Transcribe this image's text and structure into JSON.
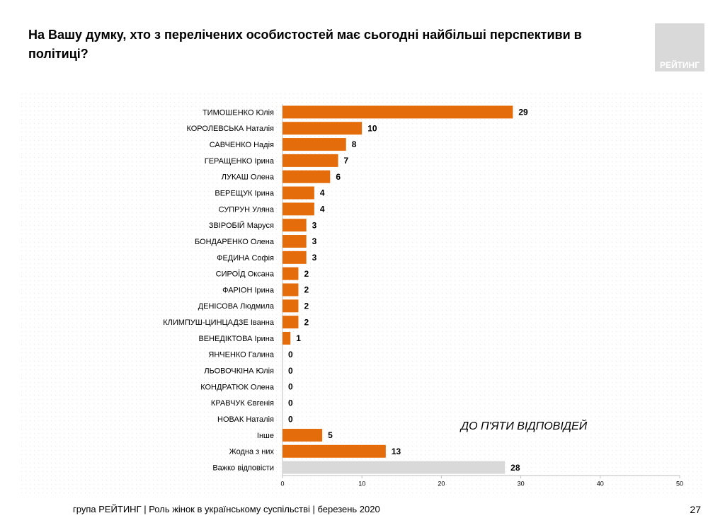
{
  "chart_data": {
    "type": "bar",
    "title": "На Вашу думку, хто з перелічених особистостей має сьогодні найбільші перспективи в політиці?",
    "categories": [
      "ТИМОШЕНКО Юлія",
      "КОРОЛЕВСЬКА Наталія",
      "САВЧЕНКО Надія",
      "ГЕРАЩЕНКО Ірина",
      "ЛУКАШ Олена",
      "ВЕРЕЩУК Ірина",
      "СУПРУН Уляна",
      "ЗВІРОБІЙ Маруся",
      "БОНДАРЕНКО Олена",
      "ФЕДИНА Софія",
      "СИРОЇД Оксана",
      "ФАРІОН Ірина",
      "ДЕНІСОВА Людмила",
      "КЛИМПУШ-ЦИНЦАДЗЕ Іванна",
      "ВЕНЕДІКТОВА Ірина",
      "ЯНЧЕНКО Галина",
      "ЛЬОВОЧКІНА Юлія",
      "КОНДРАТЮК Олена",
      "КРАВЧУК Євгенія",
      "НОВАК Наталія",
      "Інше",
      "Жодна з них",
      "Важко відповісти"
    ],
    "values": [
      29,
      10,
      8,
      7,
      6,
      4,
      4,
      3,
      3,
      3,
      2,
      2,
      2,
      2,
      1,
      0,
      0,
      0,
      0,
      0,
      5,
      13,
      28
    ],
    "colors": [
      "#e46c0a",
      "#e46c0a",
      "#e46c0a",
      "#e46c0a",
      "#e46c0a",
      "#e46c0a",
      "#e46c0a",
      "#e46c0a",
      "#e46c0a",
      "#e46c0a",
      "#e46c0a",
      "#e46c0a",
      "#e46c0a",
      "#e46c0a",
      "#e46c0a",
      "#e46c0a",
      "#e46c0a",
      "#e46c0a",
      "#e46c0a",
      "#e46c0a",
      "#e46c0a",
      "#e46c0a",
      "#d9d9d9"
    ],
    "xlim": [
      0,
      50
    ],
    "xticks": [
      0,
      10,
      20,
      30,
      40,
      50
    ],
    "annotation": "ДО П'ЯТИ ВІДПОВІДЕЙ"
  },
  "logo": "РЕЙТИНГ",
  "footer": "група РЕЙТИНГ | Роль жінок в українському суспільстві | березень 2020",
  "page_number": 27
}
